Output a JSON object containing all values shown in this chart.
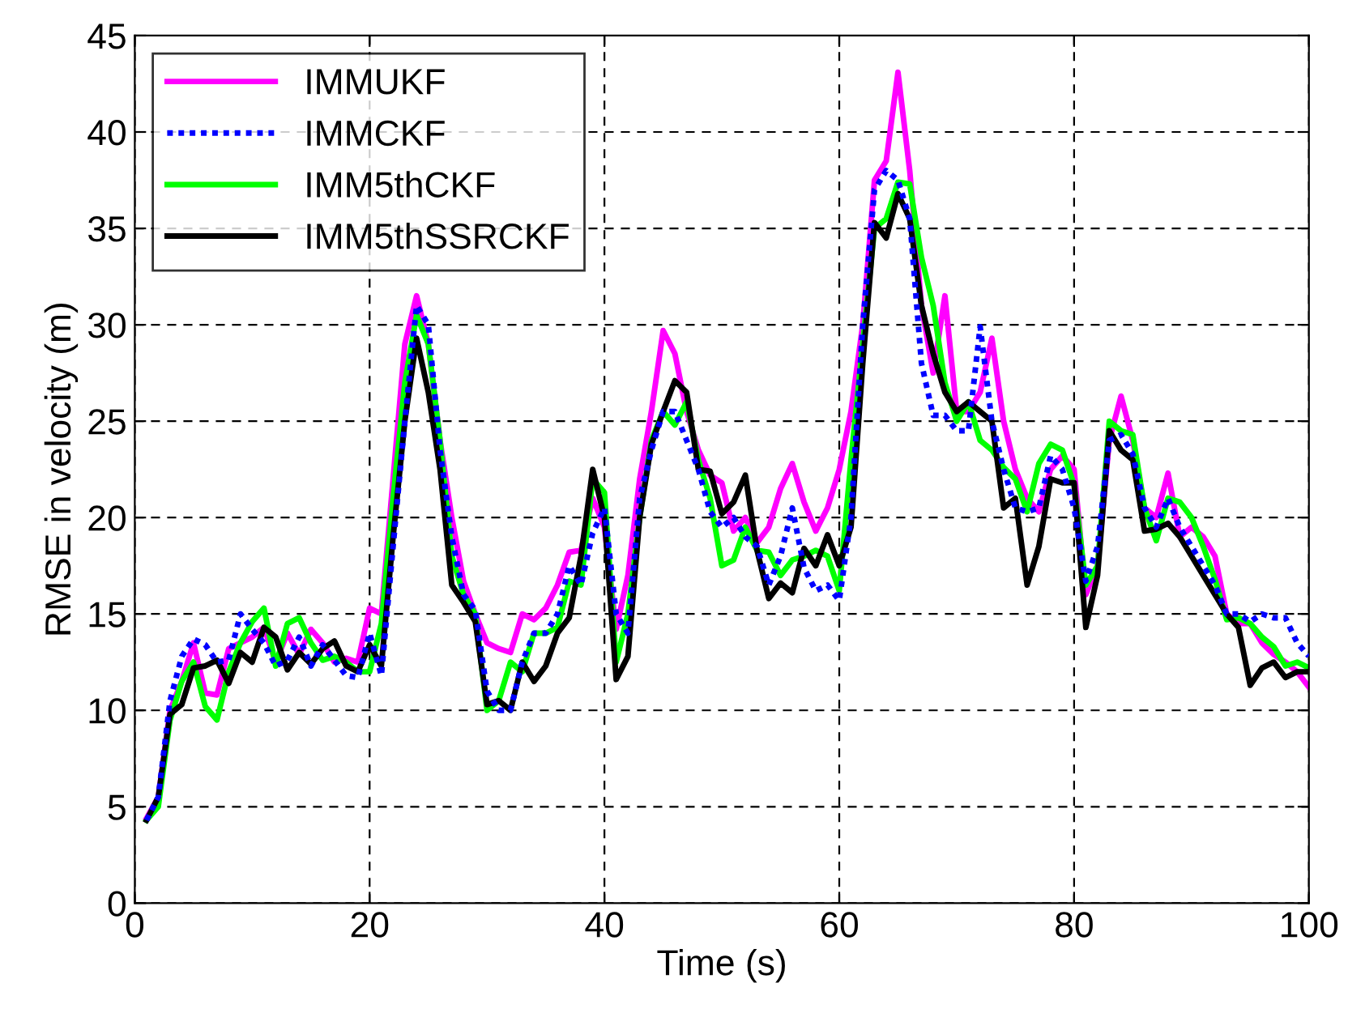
{
  "chart_data": {
    "type": "line",
    "xlabel": "Time (s)",
    "ylabel": "RMSE in velocity (m)",
    "x": [
      1,
      2,
      3,
      4,
      5,
      6,
      7,
      8,
      9,
      10,
      11,
      12,
      13,
      14,
      15,
      16,
      17,
      18,
      19,
      20,
      21,
      22,
      23,
      24,
      25,
      26,
      27,
      28,
      29,
      30,
      31,
      32,
      33,
      34,
      35,
      36,
      37,
      38,
      39,
      40,
      41,
      42,
      43,
      44,
      45,
      46,
      47,
      48,
      49,
      50,
      51,
      52,
      53,
      54,
      55,
      56,
      57,
      58,
      59,
      60,
      61,
      62,
      63,
      64,
      65,
      66,
      67,
      68,
      69,
      70,
      71,
      72,
      73,
      74,
      75,
      76,
      77,
      78,
      79,
      80,
      81,
      82,
      83,
      84,
      85,
      86,
      87,
      88,
      89,
      90,
      91,
      92,
      93,
      94,
      95,
      96,
      97,
      98,
      99,
      100
    ],
    "series": [
      {
        "name": "IMMUKF",
        "color": "#ff00ff",
        "line_style": "solid",
        "values": [
          4.4,
          5.5,
          10,
          11.5,
          13.5,
          10.9,
          10.8,
          13.2,
          13.5,
          13.8,
          14.3,
          12.5,
          14.0,
          12.9,
          14.2,
          13.5,
          12.5,
          12.7,
          12.5,
          15.3,
          15,
          22,
          29,
          31.5,
          29,
          24,
          20,
          16.7,
          15,
          13.5,
          13.2,
          13,
          15,
          14.7,
          15.3,
          16.5,
          18.2,
          18.3,
          21,
          19.5,
          14.2,
          17,
          22,
          25.5,
          29.7,
          28.5,
          25.5,
          23.5,
          22.2,
          21.8,
          19.3,
          20,
          18.7,
          19.5,
          21.5,
          22.8,
          20.8,
          19.3,
          20.5,
          22.5,
          25.5,
          30,
          37.5,
          38.5,
          43.1,
          38,
          31,
          27.5,
          31.5,
          25.5,
          25.5,
          26.5,
          29.3,
          25,
          22.5,
          21,
          20.3,
          22.5,
          23.2,
          22.5,
          16,
          17.5,
          24,
          26.3,
          24,
          20.5,
          20,
          22.3,
          19,
          19.5,
          19,
          18,
          15,
          14.5,
          14.5,
          13.5,
          12.9,
          12.5,
          12,
          11.2
        ]
      },
      {
        "name": "IMMCKF",
        "color": "#0000ff",
        "line_style": "dotted",
        "values": [
          4.3,
          5.5,
          10.5,
          12.8,
          13.7,
          13.4,
          12.5,
          12.6,
          15,
          14.2,
          13.5,
          12.3,
          12.6,
          13.8,
          12.3,
          13.4,
          12.6,
          11.8,
          11.7,
          14.0,
          11.8,
          18.5,
          25,
          31,
          30,
          23.5,
          19,
          16,
          15.2,
          11,
          10.0,
          10.0,
          12.5,
          14,
          14,
          15,
          17.5,
          16.5,
          19.2,
          20.5,
          15,
          14,
          21,
          23.5,
          25.5,
          25.5,
          24,
          22.5,
          20.3,
          19.5,
          20.0,
          19,
          18.5,
          16.5,
          18.0,
          20.5,
          17.4,
          16.2,
          16.5,
          15.7,
          20,
          30,
          37,
          38,
          37.5,
          35.5,
          28,
          25.3,
          25.3,
          24.5,
          24.5,
          29.9,
          25,
          22.5,
          20.5,
          20.3,
          20.5,
          23.2,
          22.5,
          20.5,
          16.7,
          18.5,
          24,
          24.3,
          23.3,
          20.5,
          19.5,
          21,
          19.5,
          18.5,
          17.5,
          16.5,
          15,
          15,
          14.6,
          15.0,
          14.8,
          14.8,
          13.5,
          12.8
        ]
      },
      {
        "name": "IMM5thCKF",
        "color": "#00ff00",
        "line_style": "solid",
        "values": [
          4.3,
          5.0,
          9.5,
          11.5,
          12.5,
          10.2,
          9.5,
          12.0,
          13.5,
          14.6,
          15.3,
          12.3,
          14.5,
          14.8,
          13.5,
          12.6,
          12.8,
          12.5,
          12.0,
          12.0,
          14.5,
          21,
          27,
          30.5,
          29,
          24,
          18,
          16,
          15,
          10.0,
          10.5,
          12.5,
          12.0,
          14,
          14,
          14.3,
          16.7,
          16.5,
          22,
          21.3,
          12.5,
          15,
          20,
          24,
          25.5,
          24.8,
          26,
          23,
          21,
          17.5,
          17.8,
          19.5,
          18.3,
          18.2,
          17,
          17.8,
          18,
          18.3,
          18,
          16.2,
          23,
          29,
          35,
          35.5,
          37.4,
          37.3,
          33.5,
          31,
          27,
          25.0,
          26.0,
          24,
          23.5,
          22.6,
          22,
          20.3,
          22.8,
          23.8,
          23.5,
          21.7,
          16.5,
          17.5,
          25,
          24.5,
          24.3,
          20.5,
          18.8,
          21,
          20.8,
          20,
          18.5,
          16.8,
          14.7,
          14.8,
          14.5,
          13.8,
          13.3,
          12.3,
          12.5,
          12.2
        ]
      },
      {
        "name": "IMM5thSSRCKF",
        "color": "#000000",
        "line_style": "solid",
        "values": [
          4.3,
          5.5,
          9.8,
          10.3,
          12.2,
          12.3,
          12.6,
          11.4,
          13.0,
          12.5,
          14.3,
          13.8,
          12.1,
          13.0,
          12.4,
          13.2,
          13.6,
          12.3,
          12.0,
          13.4,
          12.3,
          19,
          25,
          29.3,
          26.5,
          22.5,
          16.5,
          15.6,
          14.6,
          10.3,
          10.5,
          10.0,
          12.5,
          11.5,
          12.3,
          14.0,
          14.8,
          18,
          22.5,
          20,
          11.6,
          12.8,
          20,
          23.8,
          25.5,
          27.1,
          26.5,
          22.5,
          22.4,
          20.2,
          20.8,
          22.2,
          18.3,
          15.8,
          16.6,
          16.1,
          18.4,
          17.5,
          19.1,
          17.5,
          19.5,
          28,
          35.3,
          34.5,
          36.8,
          35.5,
          31,
          28.5,
          26.5,
          25.5,
          26,
          25.5,
          25,
          20.5,
          21,
          16.5,
          18.5,
          22,
          21.8,
          21.8,
          14.3,
          17,
          24.5,
          23.5,
          23,
          19.3,
          19.4,
          19.7,
          19,
          18,
          17,
          16,
          15,
          14.3,
          11.3,
          12.2,
          12.5,
          11.7,
          12.0,
          12.0
        ]
      }
    ],
    "xlim": [
      0,
      100
    ],
    "xticks": [
      0,
      20,
      40,
      60,
      80,
      100
    ],
    "ylim": [
      0,
      45
    ],
    "yticks": [
      0,
      5,
      10,
      15,
      20,
      25,
      30,
      35,
      40,
      45
    ],
    "grid": true,
    "legend": "top left",
    "marker": "none"
  }
}
